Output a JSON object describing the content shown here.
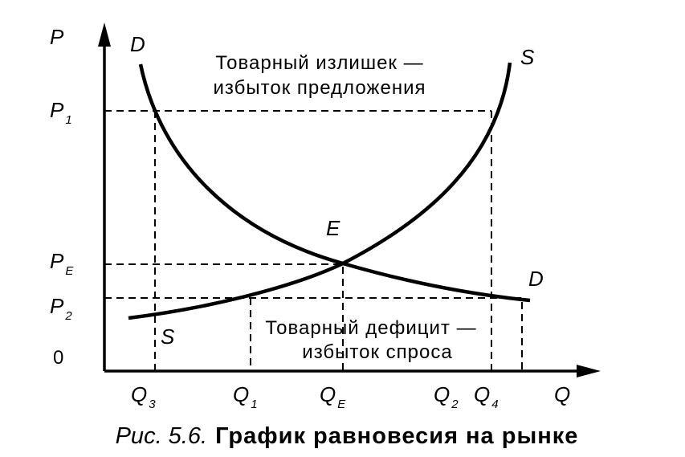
{
  "diagram": {
    "axes": {
      "y_label": "P",
      "x_label": "Q",
      "origin_label": "0"
    },
    "price_labels": [
      {
        "main": "P",
        "sub": "1"
      },
      {
        "main": "P",
        "sub": "E"
      },
      {
        "main": "P",
        "sub": "2"
      }
    ],
    "quantity_labels": [
      {
        "main": "Q",
        "sub": "3"
      },
      {
        "main": "Q",
        "sub": "1"
      },
      {
        "main": "Q",
        "sub": "E"
      },
      {
        "main": "Q",
        "sub": "2"
      },
      {
        "main": "Q",
        "sub": "4"
      }
    ],
    "curves": {
      "demand_top": "D",
      "demand_bottom": "D",
      "supply_top": "S",
      "supply_bottom": "S"
    },
    "equilibrium": "E",
    "surplus": [
      "Товарный излишек —",
      "избыток предложения"
    ],
    "deficit": [
      "Товарный дефицит —",
      "избыток спроса"
    ],
    "caption": {
      "number": "Рис. 5.6.",
      "title": "График равновесия на рынке"
    }
  }
}
